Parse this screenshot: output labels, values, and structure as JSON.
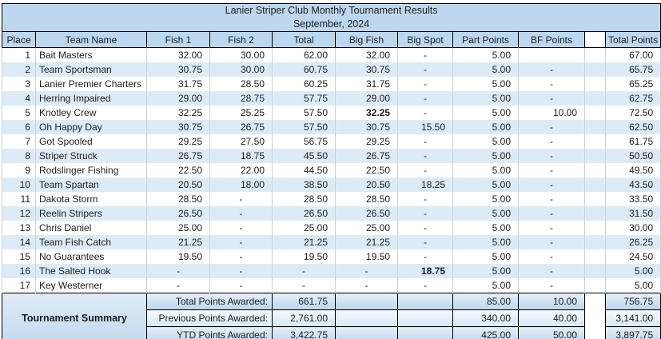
{
  "title": {
    "line1": "Lanier Striper Club Monthly Tournament Results",
    "line2": "September, 2024"
  },
  "columns": [
    "Place",
    "Team Name",
    "Fish 1",
    "Fish 2",
    "Total",
    "Big Fish",
    "Big Spot",
    "Part Points",
    "BF Points",
    "",
    "Total Points"
  ],
  "rows": [
    {
      "place": "1",
      "team": "Bait Masters",
      "fish1": "32.00",
      "fish2": "30.00",
      "total": "62.00",
      "big_fish": "32.00",
      "big_spot": "-",
      "part_points": "5.00",
      "bf_points": "",
      "total_points": "67.00"
    },
    {
      "place": "2",
      "team": "Team Sportsman",
      "fish1": "30.75",
      "fish2": "30.00",
      "total": "60.75",
      "big_fish": "30.75",
      "big_spot": "-",
      "part_points": "5.00",
      "bf_points": "-",
      "total_points": "65.75"
    },
    {
      "place": "3",
      "team": "Lanier Premier Charters",
      "fish1": "31.75",
      "fish2": "28.50",
      "total": "60.25",
      "big_fish": "31.75",
      "big_spot": "-",
      "part_points": "5.00",
      "bf_points": "-",
      "total_points": "65.25"
    },
    {
      "place": "4",
      "team": "Herring Impaired",
      "fish1": "29.00",
      "fish2": "28.75",
      "total": "57.75",
      "big_fish": "29.00",
      "big_spot": "-",
      "part_points": "5.00",
      "bf_points": "-",
      "total_points": "62.75"
    },
    {
      "place": "5",
      "team": "Knotley Crew",
      "fish1": "32.25",
      "fish2": "25.25",
      "total": "57.50",
      "big_fish": "32.25",
      "big_spot": "-",
      "part_points": "5.00",
      "bf_points": "10.00",
      "total_points": "72.50",
      "big_fish_bold": true
    },
    {
      "place": "6",
      "team": "Oh Happy Day",
      "fish1": "30.75",
      "fish2": "26.75",
      "total": "57.50",
      "big_fish": "30.75",
      "big_spot": "15.50",
      "part_points": "5.00",
      "bf_points": "-",
      "total_points": "62.50"
    },
    {
      "place": "7",
      "team": "Got Spooled",
      "fish1": "29.25",
      "fish2": "27.50",
      "total": "56.75",
      "big_fish": "29.25",
      "big_spot": "-",
      "part_points": "5.00",
      "bf_points": "-",
      "total_points": "61.75"
    },
    {
      "place": "8",
      "team": "Striper Struck",
      "fish1": "26.75",
      "fish2": "18.75",
      "total": "45.50",
      "big_fish": "26.75",
      "big_spot": "-",
      "part_points": "5.00",
      "bf_points": "-",
      "total_points": "50.50"
    },
    {
      "place": "9",
      "team": "Rodslinger Fishing",
      "fish1": "22.50",
      "fish2": "22.00",
      "total": "44.50",
      "big_fish": "22.50",
      "big_spot": "-",
      "part_points": "5.00",
      "bf_points": "-",
      "total_points": "49.50"
    },
    {
      "place": "10",
      "team": "Team Spartan",
      "fish1": "20.50",
      "fish2": "18.00",
      "total": "38.50",
      "big_fish": "20.50",
      "big_spot": "18.25",
      "part_points": "5.00",
      "bf_points": "-",
      "total_points": "43.50"
    },
    {
      "place": "11",
      "team": "Dakota Storm",
      "fish1": "28.50",
      "fish2": "-",
      "total": "28.50",
      "big_fish": "28.50",
      "big_spot": "-",
      "part_points": "5.00",
      "bf_points": "-",
      "total_points": "33.50"
    },
    {
      "place": "12",
      "team": "Reelin Stripers",
      "fish1": "26.50",
      "fish2": "-",
      "total": "26.50",
      "big_fish": "26.50",
      "big_spot": "-",
      "part_points": "5.00",
      "bf_points": "-",
      "total_points": "31.50"
    },
    {
      "place": "13",
      "team": "Chris Daniel",
      "fish1": "25.00",
      "fish2": "-",
      "total": "25.00",
      "big_fish": "25.00",
      "big_spot": "-",
      "part_points": "5.00",
      "bf_points": "-",
      "total_points": "30.00"
    },
    {
      "place": "14",
      "team": "Team Fish Catch",
      "fish1": "21.25",
      "fish2": "-",
      "total": "21.25",
      "big_fish": "21.25",
      "big_spot": "-",
      "part_points": "5.00",
      "bf_points": "-",
      "total_points": "26.25"
    },
    {
      "place": "15",
      "team": "No Guarantees",
      "fish1": "19.50",
      "fish2": "-",
      "total": "19.50",
      "big_fish": "19.50",
      "big_spot": "-",
      "part_points": "5.00",
      "bf_points": "-",
      "total_points": "24.50"
    },
    {
      "place": "16",
      "team": "The Salted Hook",
      "fish1": "-",
      "fish2": "-",
      "total": "-",
      "big_fish": "-",
      "big_spot": "18.75",
      "part_points": "5.00",
      "bf_points": "-",
      "total_points": "5.00",
      "big_spot_bold": true
    },
    {
      "place": "17",
      "team": "Key Westerner",
      "fish1": "-",
      "fish2": "-",
      "total": "-",
      "big_fish": "-",
      "big_spot": "-",
      "part_points": "5.00",
      "bf_points": "-",
      "total_points": "5.00"
    }
  ],
  "summary": {
    "label": "Tournament Summary",
    "rows": [
      {
        "label": "Total Points Awarded:",
        "value": "661.75",
        "part_points": "85.00",
        "bf_points": "10.00",
        "total_points": "756.75"
      },
      {
        "label": "Previous Points Awarded:",
        "value": "2,761.00",
        "part_points": "340.00",
        "bf_points": "40.00",
        "total_points": "3,141.00"
      },
      {
        "label": "YTD Points Awarded:",
        "value": "3,422.75",
        "part_points": "425.00",
        "bf_points": "50.00",
        "total_points": "3,897.75"
      }
    ]
  },
  "colors": {
    "header_fill": "#BDD7EE",
    "band_fill": "#DDEBF7",
    "gridline": "#C9D2D8",
    "border": "#000000",
    "text": "#1D1D1D"
  }
}
